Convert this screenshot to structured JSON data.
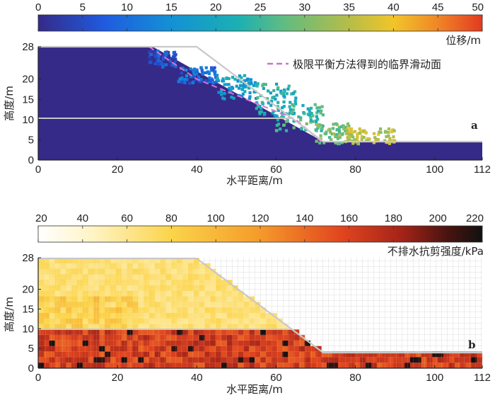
{
  "chart_data": [
    {
      "type": "heatmap",
      "panel_label": "a",
      "colorbar": {
        "ticks": [
          "0",
          "5",
          "10",
          "15",
          "20",
          "25",
          "30",
          "35",
          "40",
          "45",
          "50"
        ],
        "label": "位移/m",
        "range": [
          0,
          50
        ]
      },
      "xlabel": "水平距离/m",
      "ylabel": "高度/m",
      "xticks": [
        "0",
        "20",
        "40",
        "60",
        "80",
        "100",
        "112"
      ],
      "yticks": [
        "0",
        "5",
        "10",
        "15",
        "20",
        "28"
      ],
      "xlim": [
        0,
        112
      ],
      "ylim": [
        0,
        28
      ],
      "legend": "极限平衡方法得到的临界滑动面",
      "slope_outline": [
        [
          0,
          28
        ],
        [
          40,
          28
        ],
        [
          72,
          4
        ],
        [
          112,
          4
        ]
      ],
      "layer_boundary": [
        [
          0,
          10
        ],
        [
          64,
          10
        ]
      ],
      "failure_surface": [
        [
          28,
          28
        ],
        [
          40,
          20
        ],
        [
          55,
          14
        ],
        [
          65,
          10
        ],
        [
          72,
          4
        ]
      ],
      "sliding_mass": [
        {
          "x": [
            28,
            35
          ],
          "y": [
            27,
            23
          ],
          "displacement": 6
        },
        {
          "x": [
            35,
            45
          ],
          "y": [
            23,
            19
          ],
          "displacement": 10
        },
        {
          "x": [
            45,
            55
          ],
          "y": [
            21,
            15
          ],
          "displacement": 18
        },
        {
          "x": [
            55,
            65
          ],
          "y": [
            19,
            11
          ],
          "displacement": 22
        },
        {
          "x": [
            60,
            72
          ],
          "y": [
            14,
            7
          ],
          "displacement": 25
        },
        {
          "x": [
            70,
            80
          ],
          "y": [
            9,
            4
          ],
          "displacement": 30
        },
        {
          "x": [
            78,
            90
          ],
          "y": [
            8,
            4
          ],
          "displacement": 36
        }
      ]
    },
    {
      "type": "heatmap",
      "panel_label": "b",
      "colorbar": {
        "ticks": [
          "20",
          "40",
          "60",
          "80",
          "100",
          "120",
          "140",
          "160",
          "180",
          "200",
          "220"
        ],
        "label": "不排水抗剪强度/kPa",
        "range": [
          20,
          220
        ]
      },
      "xlabel": "水平距离/m",
      "ylabel": "高度/m",
      "xticks": [
        "0",
        "20",
        "40",
        "60",
        "80",
        "100",
        "112"
      ],
      "yticks": [
        "0",
        "5",
        "10",
        "15",
        "20",
        "28"
      ],
      "xlim": [
        0,
        112
      ],
      "ylim": [
        0,
        28
      ],
      "slope_outline": [
        [
          0,
          28
        ],
        [
          40,
          28
        ],
        [
          72,
          4
        ],
        [
          112,
          4
        ]
      ],
      "layer_boundary": [
        [
          0,
          10
        ],
        [
          64,
          10
        ]
      ],
      "upper_layer_strength_range": [
        40,
        90
      ],
      "lower_layer_strength_range": [
        110,
        220
      ]
    }
  ]
}
